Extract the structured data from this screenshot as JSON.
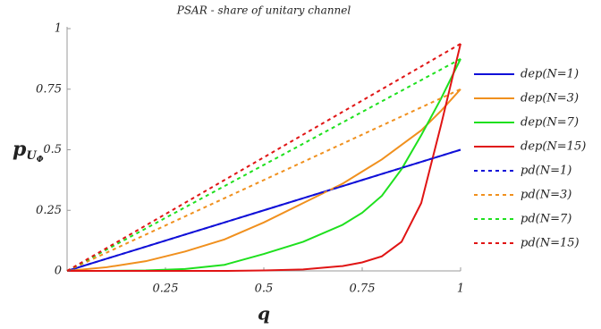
{
  "chart_data": {
    "type": "line",
    "title": "PSAR - share of unitary channel",
    "x_label": "q",
    "y_label": "p",
    "y_label_subscript": "U",
    "y_label_subsubscript": "Φ",
    "x": [
      0,
      0.1,
      0.2,
      0.3,
      0.4,
      0.5,
      0.6,
      0.7,
      0.75,
      0.8,
      0.85,
      0.9,
      0.95,
      1
    ],
    "series": [
      {
        "name": "dep(N=1)",
        "color": "#1010d8",
        "style": "solid",
        "values": [
          0,
          0.05,
          0.1,
          0.15,
          0.2,
          0.25,
          0.3,
          0.35,
          0.375,
          0.4,
          0.425,
          0.45,
          0.475,
          0.5
        ]
      },
      {
        "name": "dep(N=3)",
        "color": "#f0901e",
        "style": "solid",
        "values": [
          0,
          0.015,
          0.04,
          0.08,
          0.13,
          0.2,
          0.28,
          0.36,
          0.41,
          0.46,
          0.52,
          0.58,
          0.66,
          0.75
        ]
      },
      {
        "name": "dep(N=7)",
        "color": "#1ee01e",
        "style": "solid",
        "values": [
          0,
          0,
          0.002,
          0.008,
          0.025,
          0.07,
          0.12,
          0.19,
          0.24,
          0.31,
          0.42,
          0.56,
          0.71,
          0.875
        ]
      },
      {
        "name": "dep(N=15)",
        "color": "#e01414",
        "style": "solid",
        "values": [
          0,
          0,
          0,
          0,
          0,
          0.002,
          0.006,
          0.02,
          0.035,
          0.06,
          0.12,
          0.28,
          0.6,
          0.9375
        ]
      },
      {
        "name": "pd(N=1)",
        "color": "#1010d8",
        "style": "dashed",
        "values": [
          0,
          0.05,
          0.1,
          0.15,
          0.2,
          0.25,
          0.3,
          0.35,
          0.375,
          0.4,
          0.425,
          0.45,
          0.475,
          0.5
        ]
      },
      {
        "name": "pd(N=3)",
        "color": "#f0901e",
        "style": "dashed",
        "values": [
          0,
          0.075,
          0.15,
          0.225,
          0.3,
          0.375,
          0.45,
          0.525,
          0.5625,
          0.6,
          0.6375,
          0.675,
          0.7125,
          0.75
        ]
      },
      {
        "name": "pd(N=7)",
        "color": "#1ee01e",
        "style": "dashed",
        "values": [
          0,
          0.0875,
          0.175,
          0.2625,
          0.35,
          0.4375,
          0.525,
          0.6125,
          0.65625,
          0.7,
          0.74375,
          0.7875,
          0.83125,
          0.875
        ]
      },
      {
        "name": "pd(N=15)",
        "color": "#e01414",
        "style": "dashed",
        "values": [
          0,
          0.09375,
          0.1875,
          0.28125,
          0.375,
          0.46875,
          0.5625,
          0.65625,
          0.703125,
          0.75,
          0.796875,
          0.84375,
          0.890625,
          0.9375
        ]
      }
    ],
    "xlim": [
      0,
      1
    ],
    "ylim": [
      0,
      1
    ],
    "xticks": [
      0.25,
      0.5,
      0.75,
      1
    ],
    "yticks": [
      0,
      0.25,
      0.5,
      0.75,
      1
    ],
    "legend": "right"
  }
}
